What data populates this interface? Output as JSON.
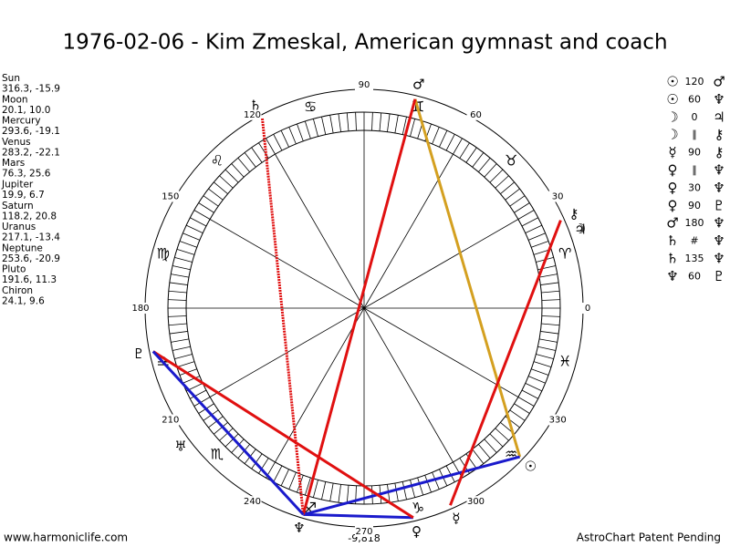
{
  "title": "1976-02-06 - Kim Zmeskal, American gymnast and coach",
  "planets": [
    {
      "name": "Sun",
      "glyph": "☉",
      "position": "316.3, -15.9"
    },
    {
      "name": "Moon",
      "glyph": "☽",
      "position": "20.1, 10.0"
    },
    {
      "name": "Mercury",
      "glyph": "☿",
      "position": "293.6, -19.1"
    },
    {
      "name": "Venus",
      "glyph": "♀",
      "position": "283.2, -22.1"
    },
    {
      "name": "Mars",
      "glyph": "♂",
      "position": "76.3, 25.6"
    },
    {
      "name": "Jupiter",
      "glyph": "♃",
      "position": "19.9, 6.7"
    },
    {
      "name": "Saturn",
      "glyph": "♄",
      "position": "118.2, 20.8"
    },
    {
      "name": "Uranus",
      "glyph": "♅",
      "position": "217.1, -13.4"
    },
    {
      "name": "Neptune",
      "glyph": "♆",
      "position": "253.6, -20.9"
    },
    {
      "name": "Pluto",
      "glyph": "♇",
      "position": "191.6, 11.3"
    },
    {
      "name": "Chiron",
      "glyph": "⚷",
      "position": "24.1, 9.6"
    }
  ],
  "aspects": [
    {
      "from": 0,
      "aspect": "120",
      "to": 4,
      "color": "#d4a020"
    },
    {
      "from": 0,
      "aspect": "60",
      "to": 8,
      "color": "#1a1acc"
    },
    {
      "from": 1,
      "aspect": "0",
      "to": 5
    },
    {
      "from": 1,
      "aspect": "∥",
      "to": 10
    },
    {
      "from": 2,
      "aspect": "90",
      "to": 10,
      "color": "#e01010"
    },
    {
      "from": 3,
      "aspect": "∥",
      "to": 8
    },
    {
      "from": 3,
      "aspect": "30",
      "to": 8,
      "color": "#1a1acc"
    },
    {
      "from": 3,
      "aspect": "90",
      "to": 9,
      "color": "#e01010"
    },
    {
      "from": 4,
      "aspect": "180",
      "to": 8,
      "color": "#e01010"
    },
    {
      "from": 6,
      "aspect": "#",
      "to": 8
    },
    {
      "from": 6,
      "aspect": "135",
      "to": 8,
      "color": "#e01010",
      "dotted": true
    },
    {
      "from": 8,
      "aspect": "60",
      "to": 9,
      "color": "#1a1acc"
    }
  ],
  "signs": [
    "♈",
    "♉",
    "♊",
    "♋",
    "♌",
    "♍",
    "♎",
    "♏",
    "♐",
    "♑",
    "♒",
    "♓"
  ],
  "degrees": [
    0,
    30,
    60,
    90,
    120,
    150,
    180,
    210,
    240,
    270,
    300,
    330
  ],
  "bottom_label": "-9,818",
  "footer": {
    "left": "www.harmoniclife.com",
    "right": "AstroChart Patent Pending"
  }
}
